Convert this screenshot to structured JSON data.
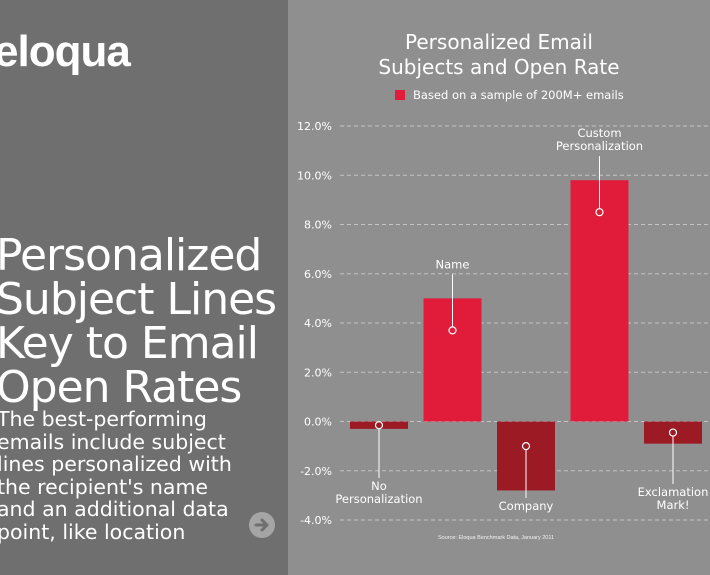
{
  "brand": {
    "logo_text": "eloqua"
  },
  "left_panel": {
    "headline_lines": [
      "Personalized",
      "Subject Lines",
      "Key to Email",
      "Open Rates"
    ],
    "body_lines": [
      "The best-performing",
      "emails include subject",
      "lines personalized with",
      "the recipient's name",
      "and an additional data",
      "point, like location"
    ],
    "next_icon": "arrow-right-circle-icon"
  },
  "colors": {
    "bar_dark": "#9c1a23",
    "bar_bright": "#e01c3a",
    "panel_left": "#6f6f70",
    "chart_bg": "#8f8f8f"
  },
  "chart_data": {
    "type": "bar",
    "title": "Personalized Email Subjects and Open Rate",
    "title_lines": [
      "Personalized Email",
      "Subjects and Open Rate"
    ],
    "legend": "Based on a sample of 200M+ emails",
    "categories": [
      {
        "label_lines": [
          "No",
          "Personalization"
        ],
        "value": -0.3,
        "label_position": "below"
      },
      {
        "label_lines": [
          "Name"
        ],
        "value": 5.0,
        "label_position": "above"
      },
      {
        "label_lines": [
          "Company"
        ],
        "value": -2.8,
        "label_position": "below"
      },
      {
        "label_lines": [
          "Custom",
          "Personalization"
        ],
        "value": 9.8,
        "label_position": "above"
      },
      {
        "label_lines": [
          "Exclamation",
          "Mark!"
        ],
        "value": -0.9,
        "label_position": "below"
      }
    ],
    "ylim": [
      -4.0,
      12.0
    ],
    "yticks": [
      "12.0%",
      "10.0%",
      "8.0%",
      "6.0%",
      "4.0%",
      "2.0%",
      "0.0%",
      "-2.0%",
      "-4.0%"
    ],
    "ytick_values": [
      12,
      10,
      8,
      6,
      4,
      2,
      0,
      -2,
      -4
    ],
    "grid": true,
    "xlabel": "",
    "ylabel": "",
    "source": "Source: Eloqua Benchmark Data, January 2011"
  }
}
